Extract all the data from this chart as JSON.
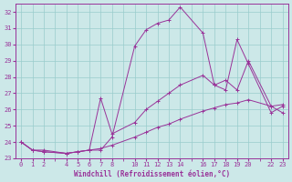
{
  "xlabel": "Windchill (Refroidissement éolien,°C)",
  "background_color": "#cce8e8",
  "grid_color": "#99cccc",
  "line_color": "#993399",
  "xlim": [
    -0.5,
    23.5
  ],
  "ylim": [
    23,
    32.5
  ],
  "yticks": [
    23,
    24,
    25,
    26,
    27,
    28,
    29,
    30,
    31,
    32
  ],
  "xticks": [
    0,
    1,
    2,
    4,
    5,
    6,
    7,
    8,
    10,
    11,
    12,
    13,
    14,
    16,
    17,
    18,
    19,
    20,
    22,
    23
  ],
  "series1_x": [
    0,
    1,
    2,
    4,
    5,
    6,
    7,
    8,
    10,
    11,
    12,
    13,
    14,
    16,
    17,
    18,
    19,
    20,
    22,
    23
  ],
  "series1_y": [
    24.0,
    23.5,
    23.5,
    23.3,
    23.4,
    23.5,
    23.5,
    24.3,
    29.9,
    30.9,
    31.3,
    31.5,
    32.3,
    30.7,
    27.5,
    27.2,
    30.3,
    28.8,
    25.8,
    26.2
  ],
  "series2_x": [
    0,
    1,
    2,
    4,
    5,
    6,
    7,
    8,
    10,
    11,
    12,
    13,
    14,
    16,
    17,
    18,
    19,
    20,
    22,
    23
  ],
  "series2_y": [
    24.0,
    23.5,
    23.4,
    23.3,
    23.4,
    23.5,
    26.7,
    24.5,
    25.2,
    26.0,
    26.5,
    27.0,
    27.5,
    28.1,
    27.5,
    27.8,
    27.2,
    29.0,
    26.2,
    25.8
  ],
  "series3_x": [
    0,
    1,
    2,
    4,
    5,
    6,
    7,
    8,
    10,
    11,
    12,
    13,
    14,
    16,
    17,
    18,
    19,
    20,
    22,
    23
  ],
  "series3_y": [
    24.0,
    23.5,
    23.4,
    23.3,
    23.4,
    23.5,
    23.6,
    23.8,
    24.3,
    24.6,
    24.9,
    25.1,
    25.4,
    25.9,
    26.1,
    26.3,
    26.4,
    26.6,
    26.2,
    26.3
  ]
}
